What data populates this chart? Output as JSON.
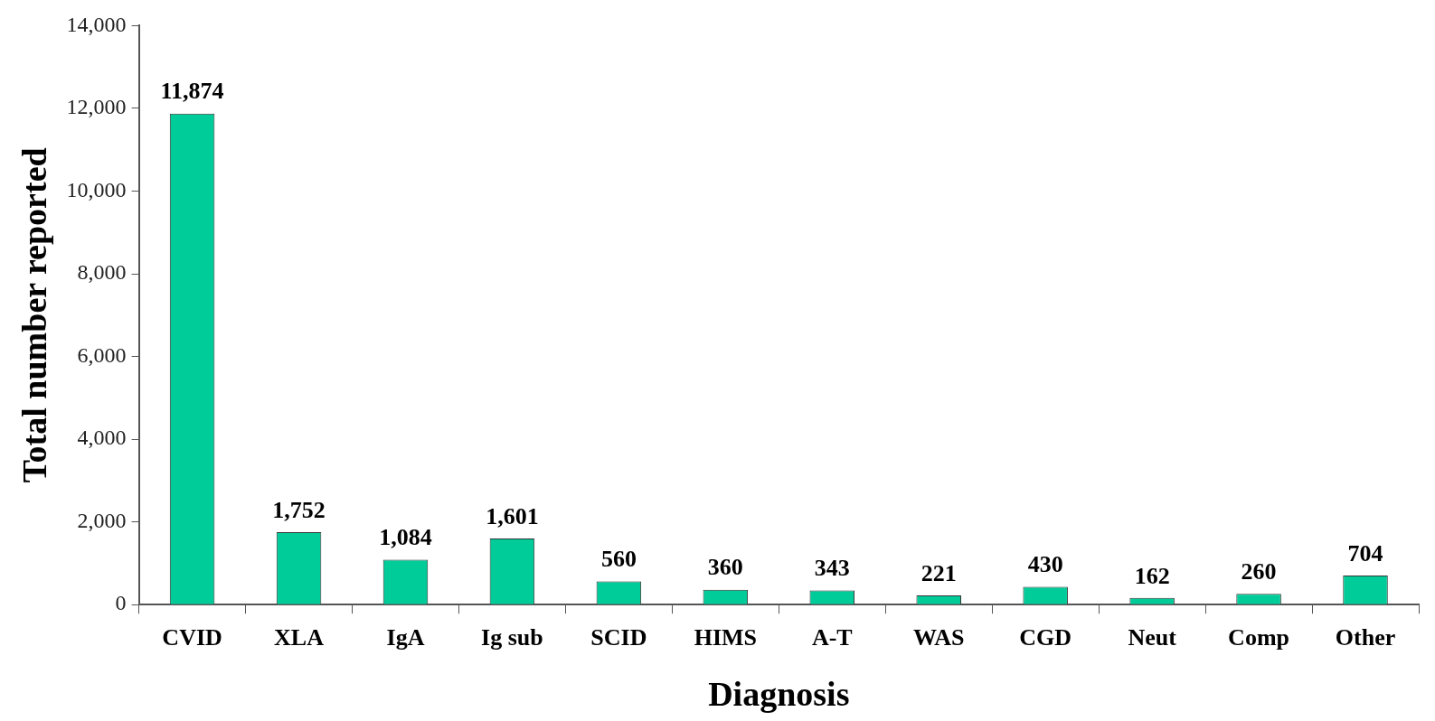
{
  "chart_data": {
    "type": "bar",
    "xlabel": "Diagnosis",
    "ylabel": "Total number reported",
    "categories": [
      "CVID",
      "XLA",
      "IgA",
      "Ig sub",
      "SCID",
      "HIMS",
      "A-T",
      "WAS",
      "CGD",
      "Neut",
      "Comp",
      "Other"
    ],
    "values": [
      11874,
      1752,
      1084,
      1601,
      560,
      360,
      343,
      221,
      430,
      162,
      260,
      704
    ],
    "value_labels": [
      "11,874",
      "1,752",
      "1,084",
      "1,601",
      "560",
      "360",
      "343",
      "221",
      "430",
      "162",
      "260",
      "704"
    ],
    "color": "#00cc99",
    "ylim": [
      0,
      14000
    ],
    "yticks": [
      0,
      {
        "value": 2000,
        "label": "2,000"
      },
      {
        "value": 4000,
        "label": "4,000"
      },
      {
        "value": 6000,
        "label": "6,000"
      },
      {
        "value": 8000,
        "label": "8,000"
      },
      {
        "value": 10000,
        "label": "10,000"
      },
      {
        "value": 12000,
        "label": "12,000"
      },
      {
        "value": 14000,
        "label": "14,000"
      }
    ],
    "grid": false,
    "legend": false
  }
}
